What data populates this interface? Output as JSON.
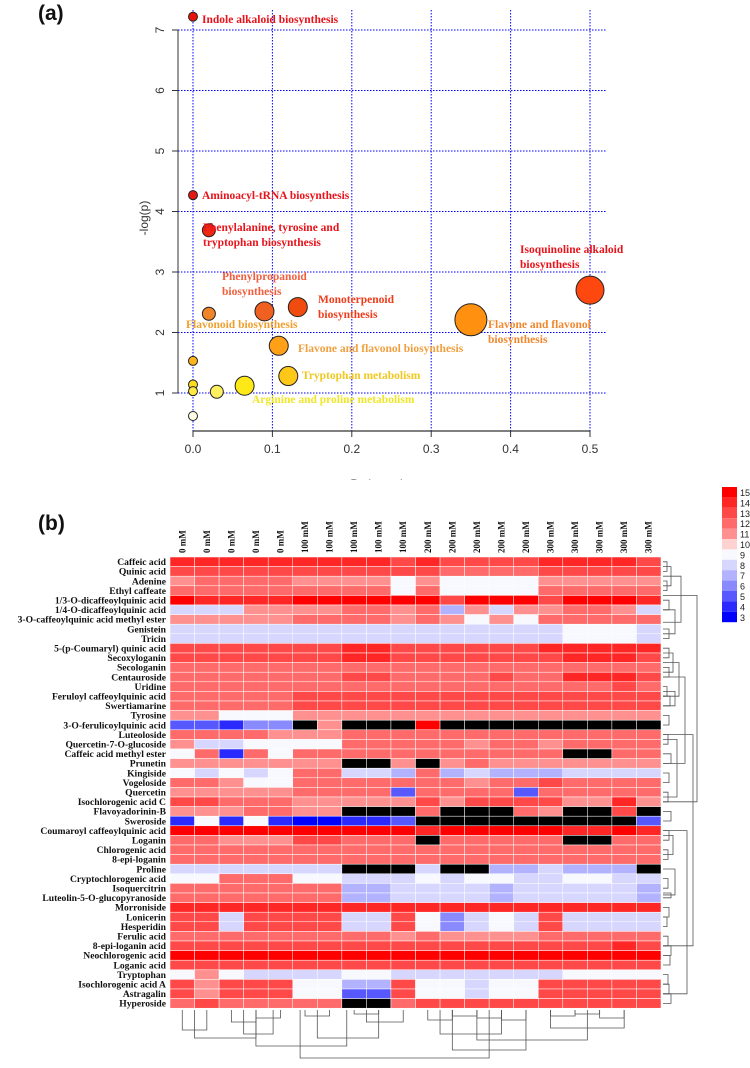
{
  "panels": {
    "a": "(a)",
    "b": "(b)"
  },
  "chart_data": [
    {
      "type": "scatter",
      "title": "",
      "xlabel": "Pathway Impact",
      "ylabel": "-log(p)",
      "xlim": [
        -0.02,
        0.52
      ],
      "ylim": [
        0.37,
        7.3
      ],
      "xticks": [
        "0.0",
        "0.1",
        "0.2",
        "0.3",
        "0.4",
        "0.5"
      ],
      "yticks": [
        "1",
        "2",
        "3",
        "4",
        "5",
        "6",
        "7"
      ],
      "grid": true,
      "grid_color": "#0000ff",
      "points": [
        {
          "x": 0.0,
          "y": 7.22,
          "size": 1,
          "color": "#e8140c",
          "label": "Indole alkaloid biosynthesis",
          "label_color": "#e8141c"
        },
        {
          "x": 0.0,
          "y": 4.27,
          "size": 1,
          "color": "#e01a10",
          "label": "Aminoacyl-tRNA biosynthesis",
          "label_color": "#e8141c"
        },
        {
          "x": 0.02,
          "y": 3.69,
          "size": 2,
          "color": "#f02810",
          "label": "Phenylalanine, tyrosine and|tryptophan biosynthesis",
          "label_color": "#e8141c"
        },
        {
          "x": 0.5,
          "y": 2.7,
          "size": 5,
          "color": "#ff4810",
          "label": "Isoquinoline alkaloid|biosynthesis",
          "label_color": "#e8141c"
        },
        {
          "x": 0.09,
          "y": 2.35,
          "size": 3,
          "color": "#f06020",
          "label": "Phenylpropanoid|biosynthesis",
          "label_color": "#f06040"
        },
        {
          "x": 0.132,
          "y": 2.42,
          "size": 3,
          "color": "#f04c10",
          "label": "Monoterpenoid|biosynthesis",
          "label_color": "#f03c1c"
        },
        {
          "x": 0.02,
          "y": 2.31,
          "size": 2,
          "color": "#f08428",
          "label": "Flavonoid biosynthesis",
          "label_color": "#f0a030"
        },
        {
          "x": 0.35,
          "y": 2.21,
          "size": 6,
          "color": "#ff9010",
          "label": "Flavone and flavonol|biosynthesis",
          "label_color": "#f08830"
        },
        {
          "x": 0.108,
          "y": 1.78,
          "size": 3,
          "color": "#ffa018",
          "label": "Flavone and flavonol biosynthesis",
          "label_color": "#f0a040"
        },
        {
          "x": 0.12,
          "y": 1.28,
          "size": 3,
          "color": "#ffc818",
          "label": "Tryptophan metabolism",
          "label_color": "#f0c820"
        },
        {
          "x": 0.065,
          "y": 1.12,
          "size": 3,
          "color": "#ffe818",
          "label": "Arginine and proline metabolism",
          "label_color": "#f0e628"
        },
        {
          "x": 0.03,
          "y": 1.02,
          "size": 2,
          "color": "#fff060",
          "label": ""
        },
        {
          "x": 0.0,
          "y": 1.53,
          "size": 1,
          "color": "#ffb41c",
          "label": ""
        },
        {
          "x": 0.0,
          "y": 1.14,
          "size": 1,
          "color": "#ffdc20",
          "label": ""
        },
        {
          "x": 0.0,
          "y": 1.03,
          "size": 1,
          "color": "#ffe840",
          "label": ""
        },
        {
          "x": 0.0,
          "y": 0.62,
          "size": 1,
          "color": "#fffbe6",
          "label": ""
        }
      ]
    },
    {
      "type": "heatmap",
      "title": "",
      "columns": [
        "0 mM",
        "0 mM",
        "0 mM",
        "0 mM",
        "0 mM",
        "100 mM",
        "100 mM",
        "100 mM",
        "100 mM",
        "100 mM",
        "200 mM",
        "200 mM",
        "200 mM",
        "200 mM",
        "200 mM",
        "300 mM",
        "300 mM",
        "300 mM",
        "300 mM",
        "300 mM"
      ],
      "rows": [
        "Caffeic acid",
        "Quinic acid",
        "Adenine",
        "Ethyl caffeate",
        "1/3-O-dicaffeoylquinic acid",
        "1/4-O-dicaffeoylquinic acid",
        "3-O-caffeoylquinic acid methyl ester",
        "Genistein",
        "Tricin",
        "5-(p-Coumaryl) quinic acid",
        "Secoxyloganin",
        "Secologanin",
        "Centauroside",
        "Uridine",
        "Feruloyl caffeoylquinic acid",
        "Swertiamarine",
        "Tyrosine",
        "3-O-ferulicoylquinic acid",
        "Luteoloside",
        "Quercetin-7-O-glucoside",
        "Caffeic acid methyl ester",
        "Prunetin",
        "Kingiside",
        "Vogeloside",
        "Quercetin",
        "Isochlorogenic acid C",
        "Flavoyadorinin-B",
        "Sweroside",
        "Coumaroyl caffeoylquinic acid",
        "Loganin",
        "Chlorogenic acid",
        "8-epi-loganin",
        "Proline",
        "Cryptochlorogenic acid",
        "Isoquercitrin",
        "Luteolin-5-O-glucopyranoside",
        "Morroniside",
        "Lonicerin",
        "Hesperidin",
        "Ferulic acid",
        "8-epi-loganin acid",
        "Neochlorogenic acid",
        "Loganic acid",
        "Tryptophan",
        "Isochlorogenic acid A",
        "Astragalin",
        "Hyperoside"
      ],
      "values": [
        [
          14,
          14,
          14,
          14,
          14,
          14,
          14,
          14,
          14,
          13,
          14,
          13,
          13,
          13,
          13,
          14,
          14,
          14,
          14,
          13
        ],
        [
          13,
          13,
          13,
          13,
          13,
          13,
          13,
          13,
          13,
          13,
          13,
          12,
          12,
          12,
          12,
          13,
          13,
          13,
          13,
          13
        ],
        [
          11,
          12,
          12,
          12,
          12,
          11,
          11,
          11,
          11,
          9,
          11,
          9,
          9,
          9,
          9,
          11,
          11,
          11,
          11,
          11
        ],
        [
          12,
          12,
          12,
          12,
          12,
          12,
          12,
          12,
          12,
          9,
          12,
          9,
          9,
          9,
          9,
          12,
          12,
          12,
          12,
          12
        ],
        [
          15,
          14,
          14,
          14,
          14,
          15,
          15,
          15,
          15,
          15,
          15,
          13,
          15,
          15,
          15,
          13,
          15,
          15,
          15,
          14
        ],
        [
          8,
          8,
          8,
          11,
          11,
          11,
          11,
          12,
          12,
          11,
          12,
          7,
          11,
          8,
          11,
          11,
          12,
          12,
          11,
          8
        ],
        [
          11,
          11,
          11,
          11,
          11,
          12,
          12,
          12,
          12,
          11,
          12,
          11,
          9,
          11,
          9,
          12,
          12,
          12,
          12,
          12
        ],
        [
          8,
          8,
          8,
          8,
          8,
          8,
          8,
          8,
          8,
          8,
          8,
          8,
          8,
          8,
          8,
          8,
          9,
          9,
          9,
          8
        ],
        [
          8,
          8,
          8,
          8,
          8,
          8,
          8,
          8,
          8,
          8,
          8,
          8,
          8,
          8,
          8,
          8,
          9,
          9,
          9,
          8
        ],
        [
          13,
          13,
          13,
          13,
          13,
          13,
          13,
          14,
          14,
          13,
          13,
          13,
          13,
          13,
          13,
          14,
          14,
          14,
          14,
          14
        ],
        [
          13,
          13,
          13,
          13,
          13,
          13,
          13,
          14,
          14,
          13,
          13,
          13,
          13,
          13,
          13,
          13,
          14,
          14,
          14,
          13
        ],
        [
          12,
          12,
          12,
          12,
          12,
          12,
          12,
          12,
          12,
          12,
          12,
          12,
          12,
          12,
          12,
          12,
          12,
          12,
          12,
          12
        ],
        [
          12,
          12,
          12,
          12,
          12,
          12,
          12,
          13,
          13,
          12,
          12,
          12,
          12,
          13,
          12,
          12,
          14,
          14,
          14,
          13
        ],
        [
          12,
          12,
          12,
          12,
          12,
          12,
          12,
          12,
          12,
          12,
          12,
          12,
          12,
          12,
          12,
          12,
          12,
          12,
          13,
          12
        ],
        [
          12,
          12,
          12,
          12,
          12,
          13,
          13,
          13,
          13,
          13,
          13,
          13,
          13,
          13,
          13,
          13,
          13,
          13,
          13,
          13
        ],
        [
          12,
          12,
          12,
          12,
          12,
          13,
          13,
          13,
          13,
          13,
          13,
          13,
          13,
          13,
          13,
          13,
          13,
          13,
          13,
          13
        ],
        [
          11,
          11,
          9,
          9,
          9,
          11,
          11,
          11,
          11,
          11,
          11,
          11,
          11,
          11,
          11,
          11,
          11,
          11,
          11,
          11
        ],
        [
          5,
          5,
          4,
          6,
          6,
          null,
          11,
          null,
          null,
          null,
          15,
          null,
          null,
          null,
          null,
          null,
          null,
          null,
          null,
          null
        ],
        [
          12,
          12,
          12,
          12,
          11,
          11,
          11,
          12,
          12,
          12,
          12,
          12,
          12,
          12,
          12,
          12,
          12,
          12,
          12,
          12
        ],
        [
          11,
          8,
          8,
          9,
          9,
          9,
          9,
          12,
          12,
          12,
          12,
          12,
          11,
          12,
          12,
          11,
          12,
          12,
          12,
          12
        ],
        [
          9,
          12,
          4,
          12,
          9,
          12,
          12,
          12,
          12,
          12,
          12,
          12,
          12,
          12,
          12,
          12,
          null,
          null,
          12,
          12
        ],
        [
          11,
          11,
          11,
          11,
          11,
          11,
          11,
          null,
          null,
          11,
          null,
          11,
          12,
          11,
          11,
          11,
          11,
          11,
          11,
          11
        ],
        [
          9,
          8,
          9,
          8,
          9,
          12,
          12,
          8,
          8,
          7,
          12,
          7,
          8,
          7,
          7,
          7,
          8,
          8,
          8,
          8
        ],
        [
          12,
          12,
          11,
          9,
          9,
          12,
          12,
          12,
          12,
          12,
          12,
          12,
          11,
          12,
          12,
          13,
          12,
          12,
          12,
          12
        ],
        [
          11,
          11,
          11,
          11,
          11,
          12,
          12,
          12,
          12,
          5,
          12,
          12,
          12,
          12,
          5,
          12,
          12,
          12,
          12,
          12
        ],
        [
          13,
          13,
          12,
          12,
          12,
          11,
          11,
          11,
          11,
          11,
          13,
          11,
          13,
          13,
          13,
          13,
          11,
          11,
          14,
          11
        ],
        [
          11,
          11,
          11,
          12,
          12,
          11,
          11,
          null,
          null,
          null,
          12,
          null,
          null,
          null,
          12,
          11,
          null,
          null,
          13,
          null
        ],
        [
          4,
          9,
          4,
          9,
          4,
          3,
          3,
          4,
          4,
          5,
          null,
          null,
          null,
          null,
          null,
          null,
          null,
          null,
          null,
          5
        ],
        [
          15,
          15,
          15,
          15,
          15,
          15,
          15,
          15,
          15,
          15,
          14,
          15,
          15,
          15,
          15,
          15,
          14,
          14,
          15,
          14
        ],
        [
          12,
          12,
          11,
          11,
          11,
          13,
          13,
          12,
          12,
          12,
          null,
          12,
          12,
          12,
          12,
          12,
          null,
          null,
          12,
          12
        ],
        [
          12,
          12,
          12,
          12,
          12,
          12,
          12,
          12,
          12,
          12,
          12,
          12,
          12,
          12,
          12,
          12,
          12,
          12,
          12,
          12
        ],
        [
          12,
          12,
          12,
          12,
          12,
          12,
          12,
          12,
          12,
          12,
          12,
          12,
          12,
          12,
          12,
          12,
          12,
          12,
          12,
          12
        ],
        [
          8,
          8,
          8,
          8,
          8,
          8,
          8,
          null,
          null,
          null,
          8,
          null,
          null,
          7,
          7,
          8,
          7,
          7,
          7,
          null
        ],
        [
          9,
          9,
          12,
          12,
          12,
          9,
          9,
          8,
          8,
          8,
          9,
          8,
          9,
          9,
          8,
          8,
          9,
          9,
          8,
          8
        ],
        [
          12,
          12,
          12,
          12,
          12,
          12,
          12,
          7,
          7,
          8,
          8,
          8,
          8,
          7,
          8,
          8,
          8,
          8,
          8,
          7
        ],
        [
          12,
          12,
          12,
          12,
          12,
          12,
          12,
          7,
          7,
          8,
          8,
          8,
          8,
          7,
          8,
          8,
          8,
          8,
          8,
          7
        ],
        [
          14,
          14,
          14,
          14,
          14,
          14,
          14,
          14,
          14,
          14,
          14,
          14,
          14,
          14,
          14,
          14,
          14,
          14,
          14,
          14
        ],
        [
          13,
          13,
          8,
          13,
          13,
          13,
          13,
          8,
          8,
          13,
          9,
          6,
          8,
          9,
          8,
          13,
          8,
          8,
          8,
          8
        ],
        [
          13,
          13,
          8,
          13,
          13,
          13,
          13,
          8,
          8,
          13,
          9,
          6,
          8,
          9,
          8,
          13,
          8,
          8,
          8,
          8
        ],
        [
          12,
          12,
          12,
          12,
          12,
          12,
          12,
          12,
          12,
          11,
          12,
          11,
          11,
          11,
          11,
          12,
          12,
          12,
          12,
          12
        ],
        [
          13,
          13,
          13,
          13,
          13,
          13,
          13,
          13,
          13,
          13,
          13,
          13,
          13,
          13,
          13,
          13,
          13,
          13,
          14,
          13
        ],
        [
          15,
          15,
          15,
          15,
          15,
          15,
          15,
          15,
          15,
          15,
          15,
          15,
          15,
          15,
          15,
          15,
          15,
          15,
          15,
          15
        ],
        [
          13,
          13,
          13,
          13,
          13,
          13,
          13,
          13,
          13,
          13,
          13,
          13,
          13,
          13,
          13,
          13,
          13,
          13,
          13,
          13
        ],
        [
          9,
          11,
          9,
          8,
          8,
          8,
          8,
          9,
          9,
          8,
          8,
          8,
          8,
          8,
          8,
          8,
          9,
          9,
          9,
          9
        ],
        [
          13,
          11,
          13,
          13,
          13,
          9,
          9,
          7,
          7,
          13,
          9,
          9,
          8,
          9,
          9,
          13,
          13,
          13,
          13,
          13
        ],
        [
          13,
          11,
          13,
          13,
          13,
          9,
          9,
          5,
          5,
          13,
          9,
          9,
          8,
          9,
          9,
          13,
          13,
          13,
          13,
          13
        ],
        [
          12,
          13,
          12,
          12,
          12,
          12,
          12,
          null,
          null,
          12,
          13,
          13,
          13,
          13,
          13,
          13,
          13,
          13,
          13,
          13
        ]
      ],
      "missing_color": "#000000",
      "colorbar": {
        "ticks": [
          "15",
          "14",
          "13",
          "12",
          "11",
          "10",
          "9",
          "8",
          "7",
          "6",
          "5",
          "4",
          "3"
        ],
        "colors": [
          "#ff0000",
          "#ff2626",
          "#ff4848",
          "#ff6a6a",
          "#ff9090",
          "#ffd2d2",
          "#f8f8ff",
          "#d6d6ff",
          "#b2b2ff",
          "#8a8aff",
          "#5858ff",
          "#2a2aff",
          "#0000ff"
        ]
      }
    }
  ]
}
